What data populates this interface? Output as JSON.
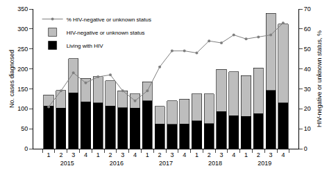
{
  "chart_data": {
    "type": "bar",
    "stacked": true,
    "categories": [
      [
        "2015",
        "1"
      ],
      [
        "2015",
        "2"
      ],
      [
        "2015",
        "3"
      ],
      [
        "2015",
        "4"
      ],
      [
        "2016",
        "1"
      ],
      [
        "2016",
        "2"
      ],
      [
        "2016",
        "3"
      ],
      [
        "2016",
        "4"
      ],
      [
        "2017",
        "1"
      ],
      [
        "2017",
        "2"
      ],
      [
        "2017",
        "3"
      ],
      [
        "2017",
        "4"
      ],
      [
        "2018",
        "1"
      ],
      [
        "2018",
        "2"
      ],
      [
        "2018",
        "3"
      ],
      [
        "2018",
        "4"
      ],
      [
        "2019",
        "1"
      ],
      [
        "2019",
        "2"
      ],
      [
        "2019",
        "3"
      ],
      [
        "2019",
        "4"
      ]
    ],
    "series": [
      {
        "name": "Living with HIV",
        "type": "bar",
        "color": "#000000",
        "values": [
          107,
          102,
          140,
          117,
          115,
          107,
          103,
          102,
          120,
          62,
          61,
          62,
          70,
          63,
          93,
          83,
          81,
          88,
          146,
          115
        ]
      },
      {
        "name": "HIV-negative or unknown status",
        "type": "bar",
        "color": "#bdbdbd",
        "values": [
          28,
          44,
          86,
          59,
          66,
          63,
          42,
          35,
          48,
          44,
          59,
          62,
          67,
          74,
          106,
          110,
          102,
          114,
          193,
          197
        ]
      },
      {
        "name": "% HIV-negative or unknown status",
        "type": "line",
        "axis": "y2",
        "color": "#7f7f7f",
        "marker": "circle",
        "values": [
          21,
          29,
          38,
          33,
          36,
          37,
          29,
          24,
          29,
          41,
          49,
          49,
          48,
          54,
          53,
          57,
          55,
          56,
          57,
          63
        ]
      }
    ],
    "y_label": "No. cases diagnosed",
    "y2_label": "HIV-negative or unknown status, %",
    "ylim": [
      0,
      350
    ],
    "yticks": [
      0,
      50,
      100,
      150,
      200,
      250,
      300,
      350
    ],
    "y2lim": [
      0,
      70
    ],
    "y2ticks": [
      0,
      10,
      20,
      30,
      40,
      50,
      60,
      70
    ],
    "legend": "top-left",
    "grid": false
  }
}
